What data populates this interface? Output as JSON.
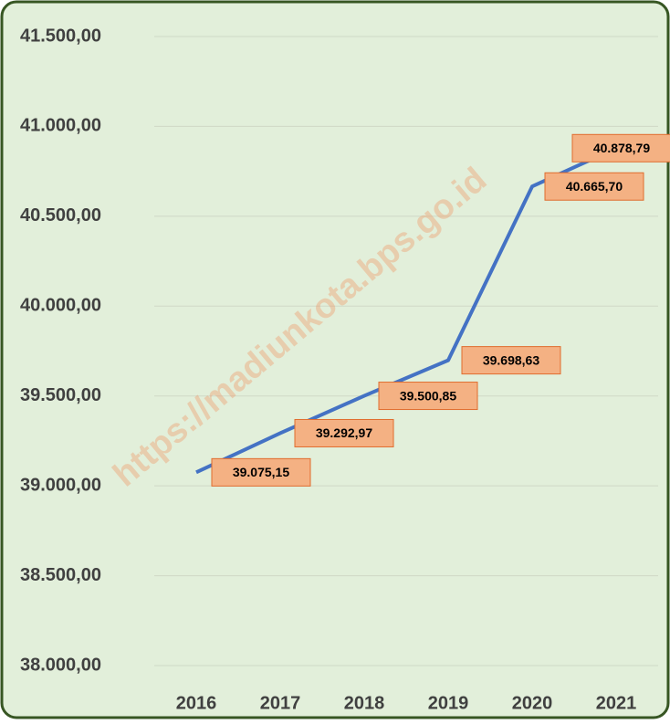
{
  "chart_data": {
    "type": "line",
    "watermark": "https://madiunkota.bps.go.id",
    "categories": [
      "2016",
      "2017",
      "2018",
      "2019",
      "2020",
      "2021"
    ],
    "series": [
      {
        "color": "#4472c4",
        "values": [
          39075.15,
          39292.97,
          39500.85,
          39698.63,
          40665.7,
          40878.79
        ],
        "value_labels": [
          "39.075,15",
          "39.292,97",
          "39.500,85",
          "39.698,63",
          "40.665,70",
          "40.878,79"
        ]
      }
    ],
    "ylim": [
      38000,
      41500
    ],
    "yticks": [
      {
        "value": 38000,
        "label": "38.000,00"
      },
      {
        "value": 38500,
        "label": "38.500,00"
      },
      {
        "value": 39000,
        "label": "39.000,00"
      },
      {
        "value": 39500,
        "label": "39.500,00"
      },
      {
        "value": 40000,
        "label": "40.000,00"
      },
      {
        "value": 40500,
        "label": "40.500,00"
      },
      {
        "value": 41000,
        "label": "41.000,00"
      },
      {
        "value": 41500,
        "label": "41.500,00"
      }
    ],
    "grid": true
  }
}
